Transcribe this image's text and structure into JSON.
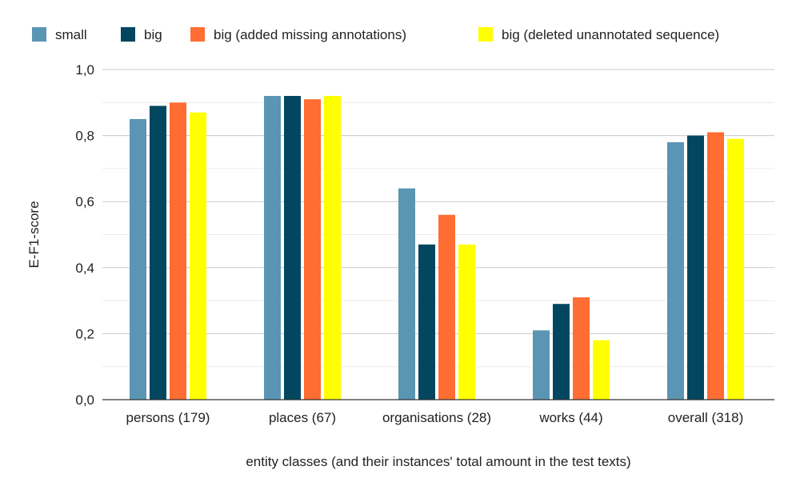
{
  "chart_data": {
    "type": "bar",
    "title": "",
    "xlabel": "entity classes (and their instances' total amount in the test texts)",
    "ylabel": "E-F1-score",
    "ylim": [
      0,
      1
    ],
    "yticks": [
      "0,0",
      "0,2",
      "0,4",
      "0,6",
      "0,8",
      "1,0"
    ],
    "ytick_values": [
      0,
      0.2,
      0.4,
      0.6,
      0.8,
      1.0
    ],
    "grid": true,
    "legend_position": "top",
    "categories": [
      "persons (179)",
      "places (67)",
      "organisations (28)",
      "works (44)",
      "overall (318)"
    ],
    "series": [
      {
        "name": "small",
        "color": "#5B95B4",
        "values": [
          0.85,
          0.92,
          0.64,
          0.21,
          0.78
        ]
      },
      {
        "name": "big",
        "color": "#024660",
        "values": [
          0.89,
          0.92,
          0.47,
          0.29,
          0.8
        ]
      },
      {
        "name": "big (added missing annotations)",
        "color": "#FF6D33",
        "values": [
          0.9,
          0.91,
          0.56,
          0.31,
          0.81
        ]
      },
      {
        "name": "big (deleted unannotated sequence)",
        "color": "#FFFF00",
        "values": [
          0.87,
          0.92,
          0.47,
          0.18,
          0.79
        ]
      }
    ]
  }
}
